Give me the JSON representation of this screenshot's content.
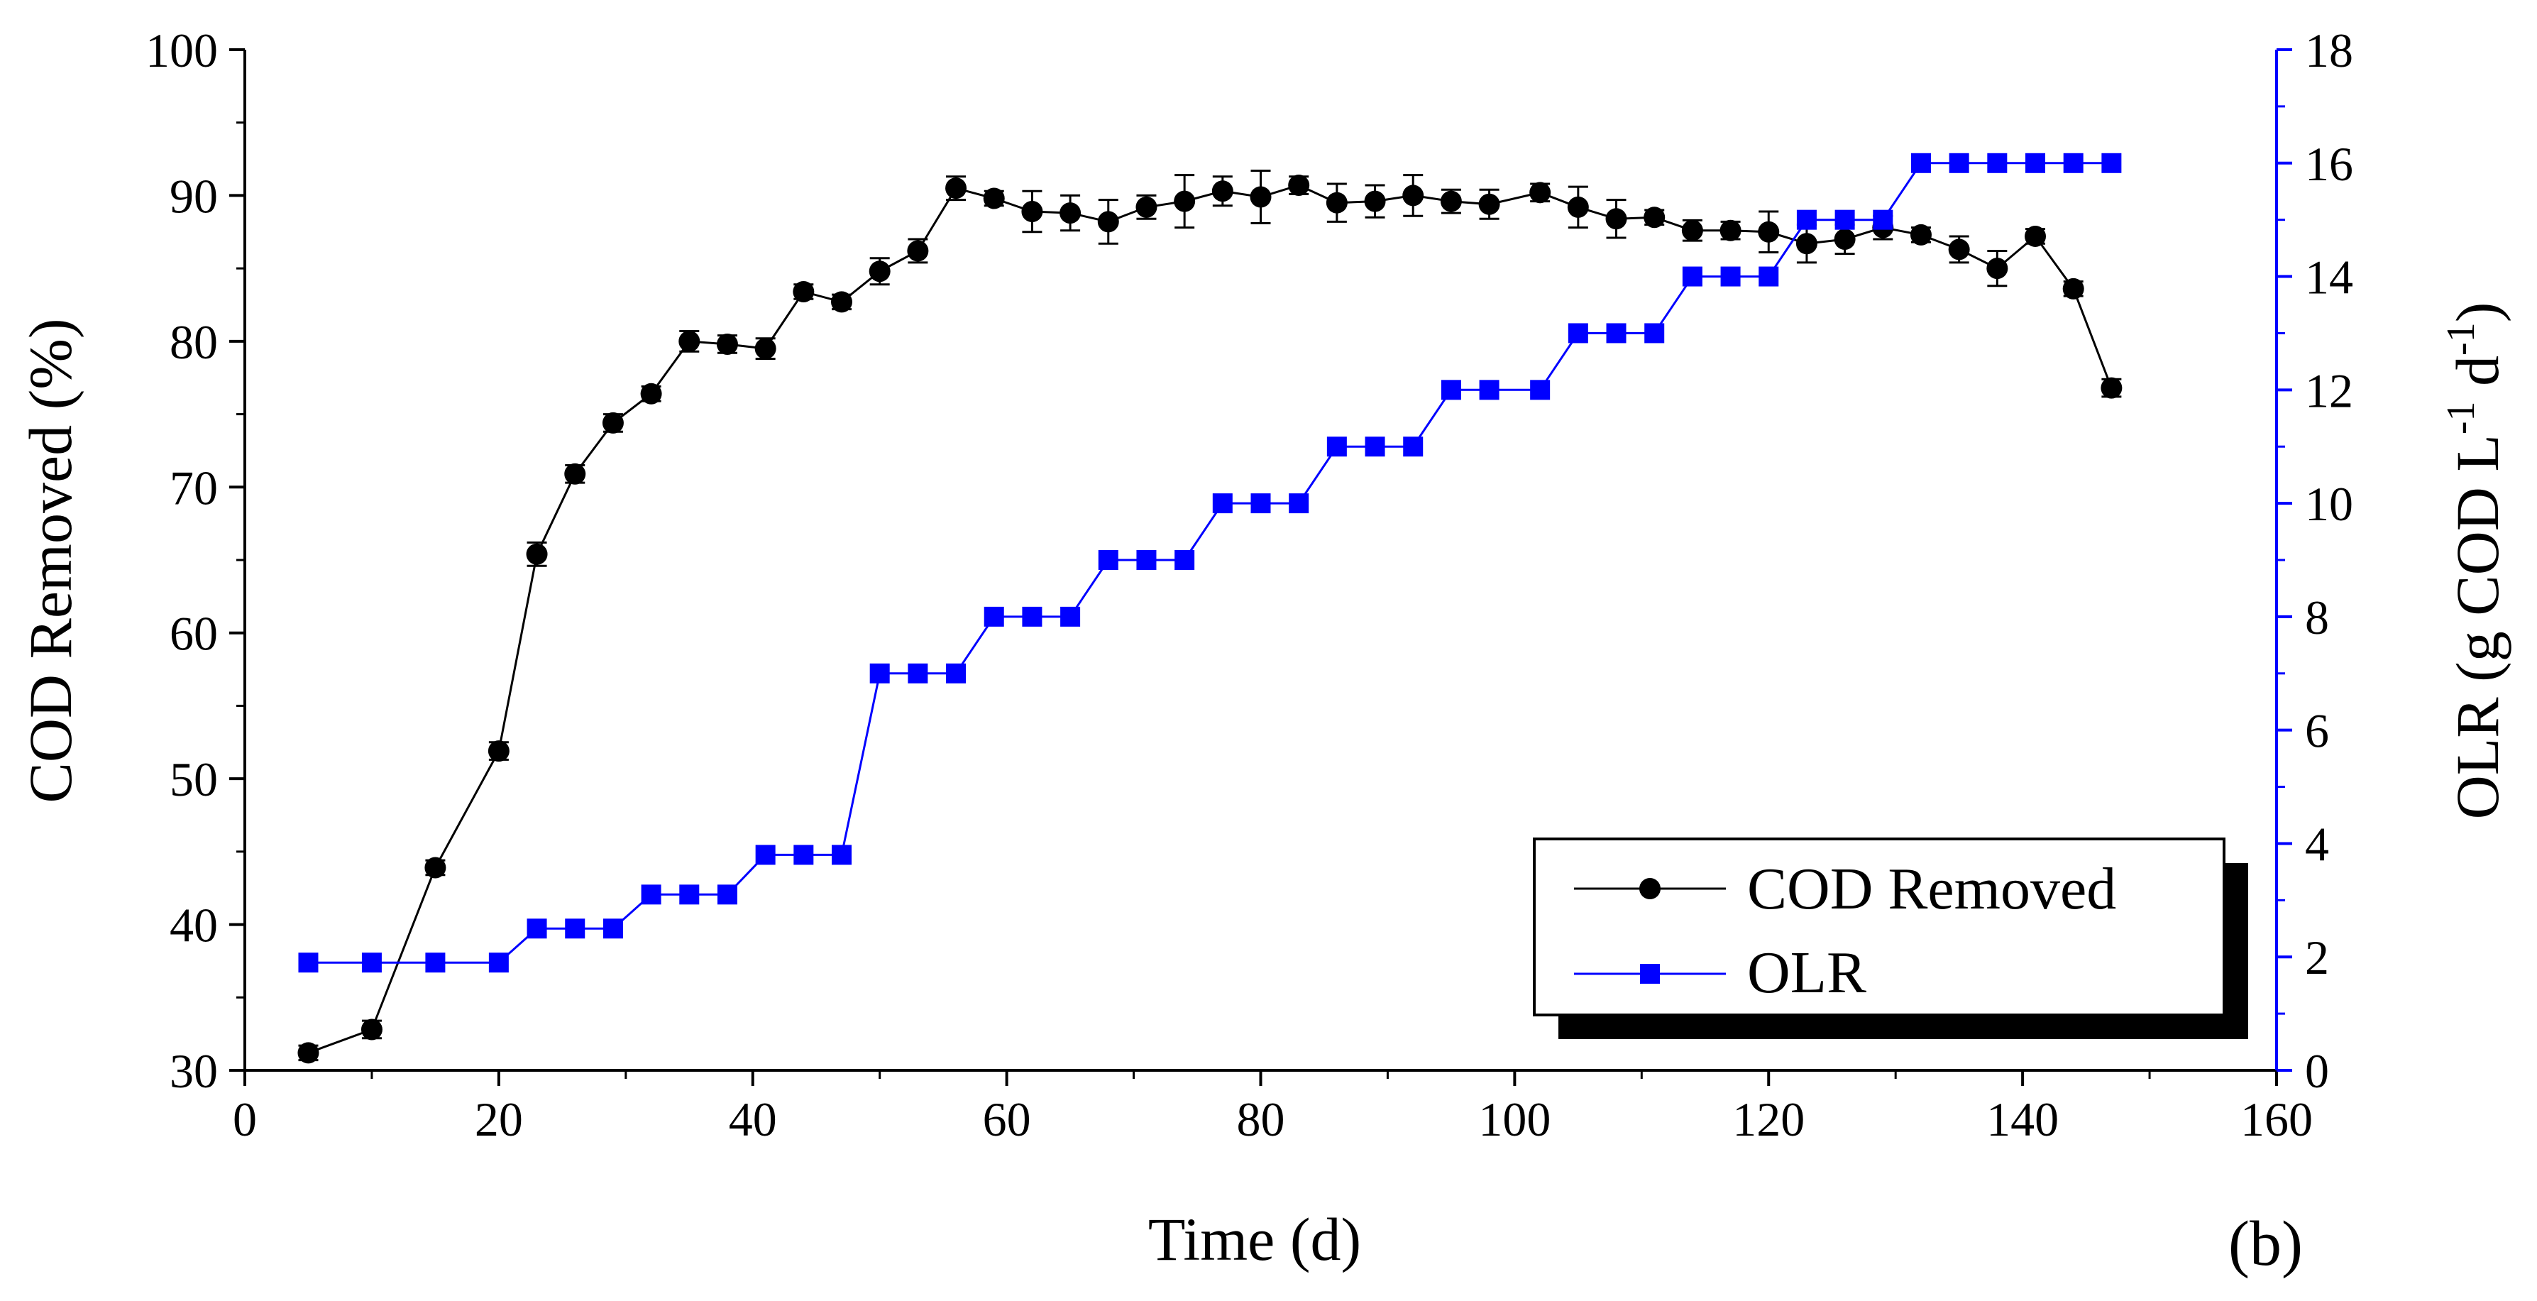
{
  "chart_data": {
    "type": "line",
    "panel_label": "(b)",
    "xlabel": "Time (d)",
    "ylabel_left": "COD Removed (%)",
    "ylabel_right_parts": [
      "OLR (g COD L",
      "-1",
      " d",
      "-1",
      ")"
    ],
    "xlim": [
      0,
      160
    ],
    "xticks": [
      0,
      20,
      40,
      60,
      80,
      100,
      120,
      140,
      160
    ],
    "ylim_left": [
      30,
      100
    ],
    "yticks_left": [
      30,
      40,
      50,
      60,
      70,
      80,
      90,
      100
    ],
    "ylim_right": [
      0,
      18
    ],
    "yticks_right": [
      0,
      2,
      4,
      6,
      8,
      10,
      12,
      14,
      16,
      18
    ],
    "legend_position": "lower-right",
    "colors": {
      "cod": "#000000",
      "olr": "#0000ff",
      "axis": "#000000",
      "right_axis": "#0000ff"
    },
    "series": [
      {
        "name": "COD Removed",
        "axis": "left",
        "marker": "circle",
        "x": [
          5,
          10,
          15,
          20,
          23,
          26,
          29,
          32,
          35,
          38,
          41,
          44,
          47,
          50,
          53,
          56,
          59,
          62,
          65,
          68,
          71,
          74,
          77,
          80,
          83,
          86,
          89,
          92,
          95,
          98,
          102,
          105,
          108,
          111,
          114,
          117,
          120,
          123,
          126,
          129,
          132,
          135,
          138,
          141,
          144,
          147
        ],
        "values": [
          31.2,
          32.8,
          43.9,
          51.9,
          65.4,
          70.9,
          74.4,
          76.4,
          80.0,
          79.8,
          79.5,
          83.4,
          82.7,
          84.8,
          86.2,
          90.5,
          89.8,
          88.9,
          88.8,
          88.2,
          89.2,
          89.6,
          90.3,
          89.9,
          90.7,
          89.5,
          89.6,
          90.0,
          89.6,
          89.4,
          90.2,
          89.2,
          88.4,
          88.5,
          87.6,
          87.6,
          87.5,
          86.7,
          87.0,
          87.8,
          87.3,
          86.3,
          85.0,
          87.2,
          83.6,
          76.8
        ],
        "errors": [
          0.5,
          0.6,
          0.5,
          0.6,
          0.8,
          0.6,
          0.6,
          0.5,
          0.7,
          0.6,
          0.7,
          0.5,
          0.5,
          0.9,
          0.8,
          0.8,
          0.5,
          1.4,
          1.2,
          1.5,
          0.8,
          1.8,
          1.0,
          1.8,
          0.6,
          1.3,
          1.1,
          1.4,
          0.8,
          1.0,
          0.6,
          1.4,
          1.3,
          0.5,
          0.7,
          0.6,
          1.4,
          1.3,
          1.0,
          0.8,
          0.5,
          0.9,
          1.2,
          0.5,
          0.5,
          0.6
        ]
      },
      {
        "name": "OLR",
        "axis": "right",
        "marker": "square",
        "x": [
          5,
          10,
          15,
          20,
          23,
          26,
          29,
          32,
          35,
          38,
          41,
          44,
          47,
          50,
          53,
          56,
          59,
          62,
          65,
          68,
          71,
          74,
          77,
          80,
          83,
          86,
          89,
          92,
          95,
          98,
          102,
          105,
          108,
          111,
          114,
          117,
          120,
          123,
          126,
          129,
          132,
          135,
          138,
          141,
          144,
          147
        ],
        "values": [
          1.9,
          1.9,
          1.9,
          1.9,
          2.5,
          2.5,
          2.5,
          3.1,
          3.1,
          3.1,
          3.8,
          3.8,
          3.8,
          7.0,
          7.0,
          7.0,
          8.0,
          8.0,
          8.0,
          9.0,
          9.0,
          9.0,
          10.0,
          10.0,
          10.0,
          11.0,
          11.0,
          11.0,
          12.0,
          12.0,
          12.0,
          13.0,
          13.0,
          13.0,
          14.0,
          14.0,
          14.0,
          15.0,
          15.0,
          15.0,
          16.0,
          16.0,
          16.0,
          16.0,
          16.0,
          16.0
        ]
      }
    ]
  }
}
